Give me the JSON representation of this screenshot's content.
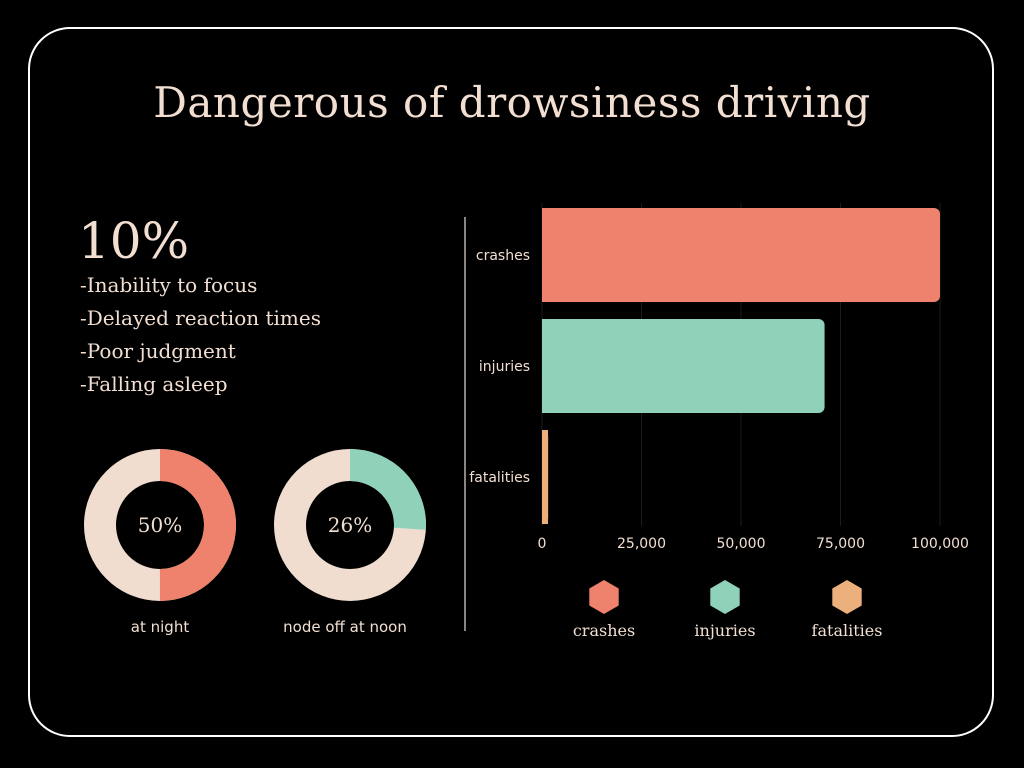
{
  "title": "Dangerous of drowsiness driving",
  "stat": {
    "value": "10%",
    "effects": [
      "-Inability to focus",
      "-Delayed reaction times",
      "-Poor judgment",
      "-Falling asleep"
    ]
  },
  "donuts": [
    {
      "center_text": "50%",
      "label": "at night",
      "percent": 50,
      "color": "#ef826c",
      "track_color": "#f0ddd0"
    },
    {
      "center_text": "26%",
      "label": "node off at noon",
      "percent": 26,
      "color": "#90d1b9",
      "track_color": "#f0ddd0"
    }
  ],
  "colors": {
    "background": "#000000",
    "text": "#f2dfd2",
    "crashes": "#ef826c",
    "injuries": "#90d1b9",
    "fatalities": "#ebb07b"
  },
  "chart_data": [
    {
      "type": "bar",
      "orientation": "horizontal",
      "categories": [
        "crashes",
        "injuries",
        "fatalities"
      ],
      "values": [
        100000,
        71000,
        1550
      ],
      "bar_colors": [
        "#ef826c",
        "#90d1b9",
        "#ebb07b"
      ],
      "xlim": [
        0,
        100000
      ],
      "x_ticks": [
        "0",
        "25,000",
        "50,000",
        "75,000",
        "100,000"
      ],
      "x_tick_values": [
        0,
        25000,
        50000,
        75000,
        100000
      ],
      "grid": true,
      "legend": {
        "placement": "bottom",
        "marker": "hexagon",
        "entries": [
          {
            "name": "crashes",
            "color": "#ef826c"
          },
          {
            "name": "injuries",
            "color": "#90d1b9"
          },
          {
            "name": "fatalities",
            "color": "#ebb07b"
          }
        ]
      }
    },
    {
      "type": "pie",
      "style": "donut",
      "categories": [
        "at night"
      ],
      "values": [
        50
      ],
      "unit": "%"
    },
    {
      "type": "pie",
      "style": "donut",
      "categories": [
        "node off at noon"
      ],
      "values": [
        26
      ],
      "unit": "%"
    }
  ]
}
